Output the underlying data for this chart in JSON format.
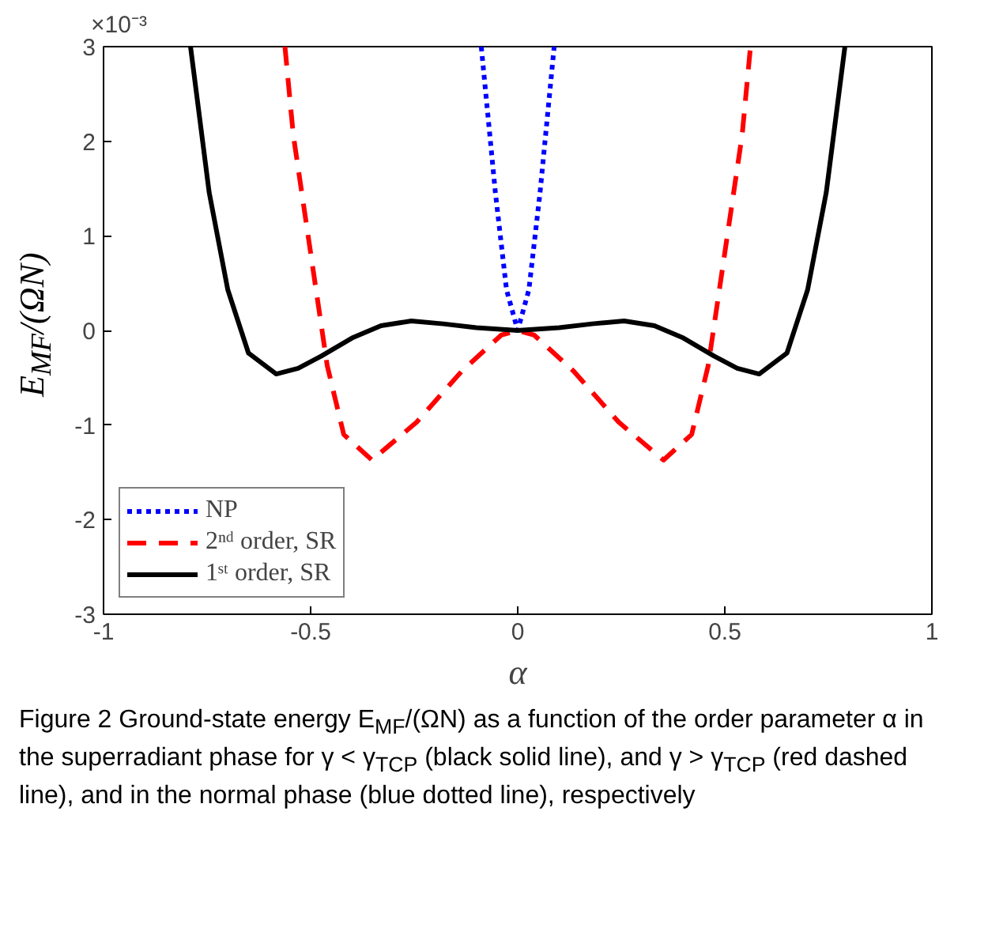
{
  "chart_data": {
    "type": "line",
    "xlabel": "α",
    "ylabel": "E$_{MF}$/(ΩN)",
    "xlim": [
      -1,
      1
    ],
    "xticks": [
      -1,
      -0.5,
      0,
      0.5,
      1
    ],
    "ylim": [
      -3,
      3
    ],
    "yticks": [
      -3,
      -2,
      -1,
      0,
      1,
      2,
      3
    ],
    "grid": false,
    "legend": "bottom left",
    "marker": "none",
    "series": [
      {
        "name": "NP",
        "color": "#0000ff",
        "line_style": "dotted",
        "x": [
          -0.088,
          -0.054,
          -0.027,
          0,
          0.027,
          0.054,
          0.088
        ],
        "values": [
          3,
          1.46,
          0.43,
          0,
          0.43,
          1.46,
          3
        ]
      },
      {
        "name": "2ⁿᵈ order, SR",
        "color": "#ff0000",
        "line_style": "dashed",
        "x": [
          -0.562,
          -0.542,
          -0.501,
          -0.46,
          -0.42,
          -0.352,
          -0.244,
          -0.135,
          -0.04,
          0,
          0.04,
          0.135,
          0.244,
          0.352,
          0.42,
          0.46,
          0.501,
          0.542,
          0.562
        ],
        "values": [
          3,
          2.07,
          0.85,
          -0.37,
          -1.1,
          -1.37,
          -0.97,
          -0.43,
          -0.05,
          0,
          -0.05,
          -0.43,
          -0.97,
          -1.37,
          -1.1,
          -0.37,
          0.85,
          2.07,
          3
        ]
      },
      {
        "name": "1ˢᵗ order, SR",
        "color": "#000000",
        "line_style": "solid",
        "x": [
          -0.79,
          -0.745,
          -0.7,
          -0.65,
          -0.583,
          -0.53,
          -0.474,
          -0.4,
          -0.33,
          -0.257,
          -0.18,
          -0.1,
          0,
          0.1,
          0.18,
          0.257,
          0.33,
          0.4,
          0.474,
          0.53,
          0.583,
          0.65,
          0.7,
          0.745,
          0.79
        ],
        "values": [
          3,
          1.46,
          0.43,
          -0.24,
          -0.46,
          -0.4,
          -0.27,
          -0.08,
          0.05,
          0.1,
          0.07,
          0.03,
          0,
          0.03,
          0.07,
          0.1,
          0.05,
          -0.08,
          -0.27,
          -0.4,
          -0.46,
          -0.24,
          0.43,
          1.46,
          3
        ]
      }
    ],
    "annotations": [
      "×10⁻³",
      "Figure 2  Ground-state energy E$_{MF}$/(ΩN) as a function of the order parameter α in the superradiant phase for γ < γ$_{TCP}$ (black solid line), and γ > γ$_{TCP}$ (red dashed line), and in the normal phase (blue dotted line), respectively"
    ]
  }
}
